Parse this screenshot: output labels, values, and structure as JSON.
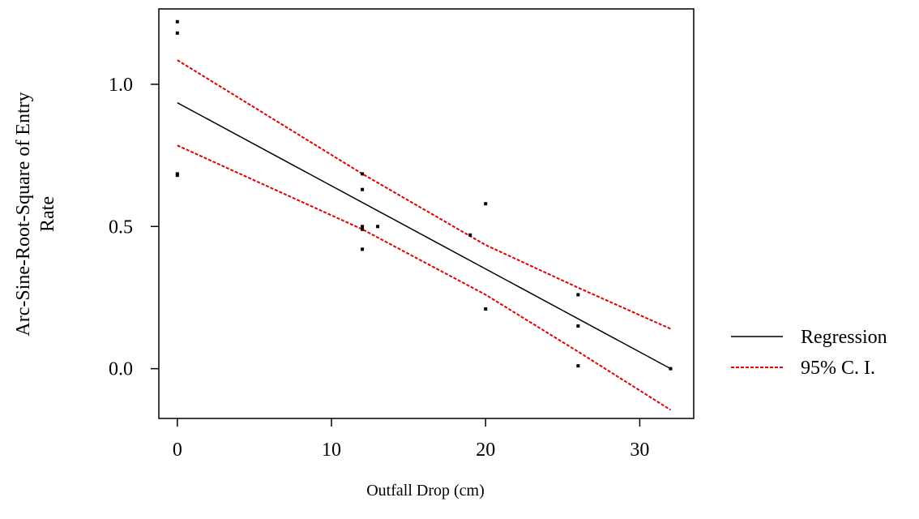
{
  "chart_data": {
    "type": "scatter",
    "title": "",
    "xlabel": "Outfall Drop (cm)",
    "ylabel_lines": [
      "Arc-Sine-Root-Square of Entry",
      "Rate"
    ],
    "xlim": [
      -1.2,
      33.5
    ],
    "ylim": [
      -0.175,
      1.265
    ],
    "x_ticks": [
      0,
      10,
      20,
      30
    ],
    "x_tick_labels": [
      "0",
      "10",
      "20",
      "30"
    ],
    "y_ticks": [
      0.0,
      0.5,
      1.0
    ],
    "y_tick_labels": [
      "0.0",
      "0.5",
      "1.0"
    ],
    "grid": false,
    "legend_position": "right",
    "points": [
      {
        "x": 0,
        "y": 1.22
      },
      {
        "x": 0,
        "y": 1.18
      },
      {
        "x": 0,
        "y": 0.685
      },
      {
        "x": 0,
        "y": 0.68
      },
      {
        "x": 12,
        "y": 0.685
      },
      {
        "x": 12,
        "y": 0.63
      },
      {
        "x": 12,
        "y": 0.5
      },
      {
        "x": 12,
        "y": 0.49
      },
      {
        "x": 12,
        "y": 0.42
      },
      {
        "x": 13,
        "y": 0.5
      },
      {
        "x": 19,
        "y": 0.47
      },
      {
        "x": 20,
        "y": 0.58
      },
      {
        "x": 20,
        "y": 0.21
      },
      {
        "x": 26,
        "y": 0.26
      },
      {
        "x": 26,
        "y": 0.15
      },
      {
        "x": 26,
        "y": 0.01
      },
      {
        "x": 32,
        "y": 0.0
      }
    ],
    "series": [
      {
        "name": "Regression",
        "color": "#000000",
        "dash": false,
        "x": [
          0,
          32
        ],
        "y": [
          0.935,
          0.0
        ]
      },
      {
        "name": "95% C. I.",
        "color": "#e00000",
        "dash": true,
        "x": [
          0,
          12,
          20,
          26,
          32
        ],
        "y": [
          1.085,
          0.685,
          0.435,
          0.285,
          0.14
        ]
      },
      {
        "name": "",
        "color": "#e00000",
        "dash": true,
        "x": [
          0,
          12,
          20,
          26,
          32
        ],
        "y": [
          0.785,
          0.49,
          0.26,
          0.06,
          -0.145
        ]
      }
    ],
    "legend": [
      {
        "label": "Regression",
        "color": "#000000",
        "dash": false
      },
      {
        "label": "95% C. I.",
        "color": "#e00000",
        "dash": true
      }
    ]
  }
}
